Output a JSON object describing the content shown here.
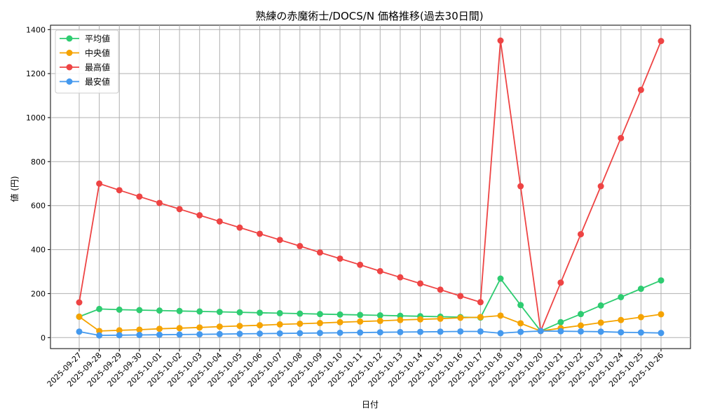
{
  "chart_data": {
    "type": "line",
    "title": "熟練の赤魔術士/DOCS/N 価格推移(過去30日間)",
    "xlabel": "日付",
    "ylabel": "値 (円)",
    "ylim": [
      -50,
      1420
    ],
    "yticks": [
      0,
      200,
      400,
      600,
      800,
      1000,
      1200,
      1400
    ],
    "grid": true,
    "legend_position": "top-left",
    "categories": [
      "2025-09-27",
      "2025-09-28",
      "2025-09-29",
      "2025-09-30",
      "2025-10-01",
      "2025-10-02",
      "2025-10-03",
      "2025-10-04",
      "2025-10-05",
      "2025-10-06",
      "2025-10-07",
      "2025-10-08",
      "2025-10-09",
      "2025-10-10",
      "2025-10-11",
      "2025-10-12",
      "2025-10-13",
      "2025-10-14",
      "2025-10-15",
      "2025-10-16",
      "2025-10-17",
      "2025-10-18",
      "2025-10-19",
      "2025-10-20",
      "2025-10-21",
      "2025-10-22",
      "2025-10-23",
      "2025-10-24",
      "2025-10-25",
      "2025-10-26"
    ],
    "series": [
      {
        "name": "平均値",
        "color": "#2ecc71",
        "values": [
          95,
          130,
          127,
          125,
          123,
          121,
          119,
          117,
          115,
          113,
          111,
          109,
          107,
          105,
          103,
          101,
          99,
          97,
          95,
          93,
          91,
          268,
          148,
          30,
          70,
          107,
          146,
          184,
          222,
          260
        ]
      },
      {
        "name": "中央値",
        "color": "#f5a300",
        "values": [
          95,
          30,
          33,
          36,
          40,
          43,
          46,
          50,
          53,
          56,
          60,
          63,
          66,
          70,
          73,
          76,
          80,
          83,
          86,
          90,
          93,
          100,
          65,
          30,
          43,
          55,
          68,
          80,
          93,
          106
        ]
      },
      {
        "name": "最高値",
        "color": "#ee4444",
        "values": [
          160,
          700,
          670,
          641,
          612,
          584,
          556,
          528,
          500,
          472,
          444,
          416,
          387,
          359,
          331,
          302,
          274,
          246,
          218,
          189,
          161,
          1350,
          688,
          30,
          250,
          470,
          688,
          907,
          1126,
          1348
        ]
      },
      {
        "name": "最安値",
        "color": "#4499ee",
        "values": [
          27,
          10,
          11,
          12,
          13,
          14,
          15,
          16,
          17,
          18,
          19,
          20,
          21,
          22,
          23,
          24,
          25,
          26,
          27,
          28,
          28,
          20,
          26,
          30,
          29,
          28,
          27,
          24,
          23,
          21
        ]
      }
    ]
  }
}
